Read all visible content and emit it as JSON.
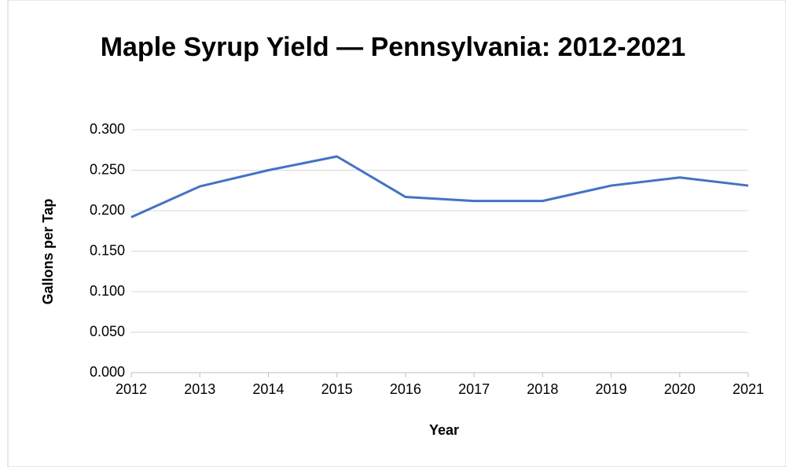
{
  "chart_data": {
    "type": "line",
    "title": "Maple Syrup Yield — Pennsylvania: 2012-2021",
    "x_label": "Year",
    "y_label": "Gallons per Tap",
    "categories": [
      "2012",
      "2013",
      "2014",
      "2015",
      "2016",
      "2017",
      "2018",
      "2019",
      "2020",
      "2021"
    ],
    "series": [
      {
        "name": "Gallons per Tap",
        "color": "#4472c4",
        "values": [
          0.192,
          0.23,
          0.25,
          0.267,
          0.217,
          0.212,
          0.212,
          0.231,
          0.241,
          0.231
        ]
      }
    ],
    "ylim": [
      0,
      0.3
    ],
    "yticks": [
      {
        "value": 0,
        "label": "0.000"
      },
      {
        "value": 0.05,
        "label": "0.050"
      },
      {
        "value": 0.1,
        "label": "0.100"
      },
      {
        "value": 0.15,
        "label": "0.150"
      },
      {
        "value": 0.2,
        "label": "0.200"
      },
      {
        "value": 0.25,
        "label": "0.250"
      },
      {
        "value": 0.3,
        "label": "0.300"
      }
    ],
    "grid": true
  }
}
